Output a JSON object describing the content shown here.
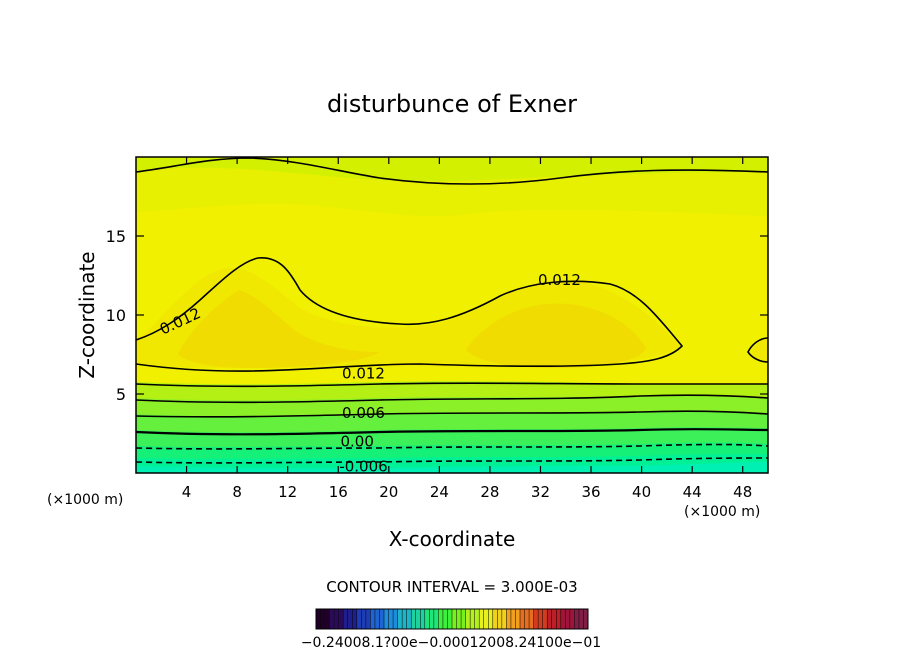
{
  "chart_data": {
    "type": "heatmap",
    "subtype": "filled-contour",
    "title": "disturbunce of Exner",
    "xlabel": "X-coordinate",
    "ylabel": "Z-coordinate",
    "x_unit_left": "(×1000 m)",
    "x_unit_right": "(×1000 m)",
    "xlim": [
      0,
      50
    ],
    "ylim": [
      0,
      20
    ],
    "x_ticks": [
      "4",
      "8",
      "12",
      "16",
      "20",
      "24",
      "28",
      "32",
      "36",
      "40",
      "44",
      "48"
    ],
    "x_tick_values": [
      4,
      8,
      12,
      16,
      20,
      24,
      28,
      32,
      36,
      40,
      44,
      48
    ],
    "y_ticks": [
      "5",
      "10",
      "15"
    ],
    "y_tick_values": [
      5,
      10,
      15
    ],
    "contour_interval_text": "CONTOUR INTERVAL = 3.000E-03",
    "contour_interval": 0.003,
    "contour_labels": [
      {
        "text": "0.012",
        "x": 3.5,
        "z": 9.6
      },
      {
        "text": "0.012",
        "x": 33.5,
        "z": 12.2
      },
      {
        "text": "0.012",
        "x": 18.0,
        "z": 6.3
      },
      {
        "text": "0.006",
        "x": 18.0,
        "z": 3.8
      },
      {
        "text": "0.00",
        "x": 17.5,
        "z": 2.0
      },
      {
        "text": "-0.006",
        "x": 18.0,
        "z": 0.4
      }
    ],
    "colorbar_labels_text": "−0.24008.1?00e−0.00012008.24100e−01",
    "colorbar_colors": [
      "#200028",
      "#2a0a5a",
      "#1e1e8c",
      "#1e3cb4",
      "#1e64d2",
      "#1e8cdc",
      "#1eb4c8",
      "#1ed2a0",
      "#1ee678",
      "#3cf03c",
      "#78f01e",
      "#b4f01e",
      "#e6f01e",
      "#f0d21e",
      "#f0a01e",
      "#e66e1e",
      "#d23c1e",
      "#be1e28",
      "#a0143c",
      "#801e46"
    ],
    "colors": {
      "level_neg_009": "#00f0b4",
      "level_neg_006": "#00f096",
      "level_neg_003": "#14f078",
      "level_000": "#3cf05a",
      "level_003": "#64f03c",
      "level_006": "#8cf028",
      "level_009": "#b4f014",
      "level_012": "#d2f000",
      "level_015": "#f0f000",
      "level_018": "#f0dc00"
    }
  }
}
